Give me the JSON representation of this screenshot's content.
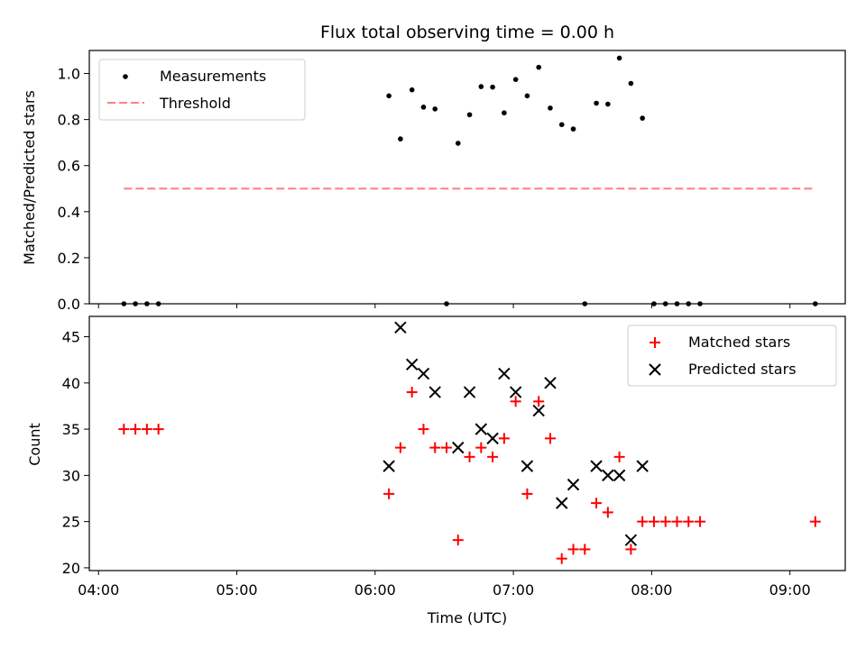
{
  "chart_data": [
    {
      "type": "scatter",
      "title": "Flux total observing time = 0.00 h",
      "xlabel": "",
      "ylabel": "Matched/Predicted stars",
      "ylim": [
        0,
        1.1
      ],
      "yticks": [
        "0.0",
        "0.2",
        "0.4",
        "0.6",
        "0.8",
        "1.0"
      ],
      "ytick_values": [
        0,
        0.2,
        0.4,
        0.6,
        0.8,
        1.0
      ],
      "legend_position": "top-left",
      "series": [
        {
          "name": "Measurements",
          "marker": "dot",
          "color": "#000000",
          "points": [
            [
              "04:11",
              0
            ],
            [
              "04:16",
              0
            ],
            [
              "04:21",
              0
            ],
            [
              "04:26",
              0
            ],
            [
              "06:06",
              0.903
            ],
            [
              "06:11",
              0.716
            ],
            [
              "06:16",
              0.929
            ],
            [
              "06:21",
              0.854
            ],
            [
              "06:26",
              0.846
            ],
            [
              "06:31",
              0
            ],
            [
              "06:36",
              0.697
            ],
            [
              "06:41",
              0.821
            ],
            [
              "06:46",
              0.943
            ],
            [
              "06:51",
              0.941
            ],
            [
              "06:56",
              0.829
            ],
            [
              "07:01",
              0.974
            ],
            [
              "07:06",
              0.903
            ],
            [
              "07:11",
              1.027
            ],
            [
              "07:16",
              0.85
            ],
            [
              "07:21",
              0.778
            ],
            [
              "07:26",
              0.759
            ],
            [
              "07:31",
              0
            ],
            [
              "07:36",
              0.871
            ],
            [
              "07:41",
              0.867
            ],
            [
              "07:46",
              1.067
            ],
            [
              "07:51",
              0.957
            ],
            [
              "07:56",
              0.806
            ],
            [
              "08:01",
              0
            ],
            [
              "08:06",
              0
            ],
            [
              "08:11",
              0
            ],
            [
              "08:16",
              0
            ],
            [
              "08:21",
              0
            ],
            [
              "09:11",
              0
            ]
          ]
        },
        {
          "name": "Threshold",
          "style": "dashed",
          "color": "#ff7f7f",
          "points": [
            [
              "04:11",
              0.5
            ],
            [
              "09:11",
              0.5
            ]
          ]
        }
      ]
    },
    {
      "type": "scatter",
      "title": "",
      "xlabel": "Time (UTC)",
      "ylabel": "Count",
      "ylim": [
        19.7,
        47.2
      ],
      "yticks": [
        "20",
        "25",
        "30",
        "35",
        "40",
        "45"
      ],
      "ytick_values": [
        20,
        25,
        30,
        35,
        40,
        45
      ],
      "xlim": [
        "03:56",
        "09:24"
      ],
      "xticks": [
        "04:00",
        "05:00",
        "06:00",
        "07:00",
        "08:00",
        "09:00"
      ],
      "legend_position": "top-right",
      "series": [
        {
          "name": "Matched stars",
          "marker": "plus",
          "color": "#ff0000",
          "points": [
            [
              "04:11",
              35
            ],
            [
              "04:16",
              35
            ],
            [
              "04:21",
              35
            ],
            [
              "04:26",
              35
            ],
            [
              "06:06",
              28
            ],
            [
              "06:11",
              33
            ],
            [
              "06:16",
              39
            ],
            [
              "06:21",
              35
            ],
            [
              "06:26",
              33
            ],
            [
              "06:31",
              33
            ],
            [
              "06:36",
              23
            ],
            [
              "06:41",
              32
            ],
            [
              "06:46",
              33
            ],
            [
              "06:51",
              32
            ],
            [
              "06:56",
              34
            ],
            [
              "07:01",
              38
            ],
            [
              "07:06",
              28
            ],
            [
              "07:11",
              38
            ],
            [
              "07:16",
              34
            ],
            [
              "07:21",
              21
            ],
            [
              "07:26",
              22
            ],
            [
              "07:31",
              22
            ],
            [
              "07:36",
              27
            ],
            [
              "07:41",
              26
            ],
            [
              "07:46",
              32
            ],
            [
              "07:51",
              22
            ],
            [
              "07:56",
              25
            ],
            [
              "08:01",
              25
            ],
            [
              "08:06",
              25
            ],
            [
              "08:11",
              25
            ],
            [
              "08:16",
              25
            ],
            [
              "08:21",
              25
            ],
            [
              "09:11",
              25
            ]
          ]
        },
        {
          "name": "Predicted stars",
          "marker": "x",
          "color": "#000000",
          "points": [
            [
              "06:06",
              31
            ],
            [
              "06:11",
              46
            ],
            [
              "06:16",
              42
            ],
            [
              "06:21",
              41
            ],
            [
              "06:26",
              39
            ],
            [
              "06:36",
              33
            ],
            [
              "06:41",
              39
            ],
            [
              "06:46",
              35
            ],
            [
              "06:51",
              34
            ],
            [
              "06:56",
              41
            ],
            [
              "07:01",
              39
            ],
            [
              "07:06",
              31
            ],
            [
              "07:11",
              37
            ],
            [
              "07:16",
              40
            ],
            [
              "07:21",
              27
            ],
            [
              "07:26",
              29
            ],
            [
              "07:36",
              31
            ],
            [
              "07:41",
              30
            ],
            [
              "07:46",
              30
            ],
            [
              "07:51",
              23
            ],
            [
              "07:56",
              31
            ]
          ]
        }
      ]
    }
  ]
}
